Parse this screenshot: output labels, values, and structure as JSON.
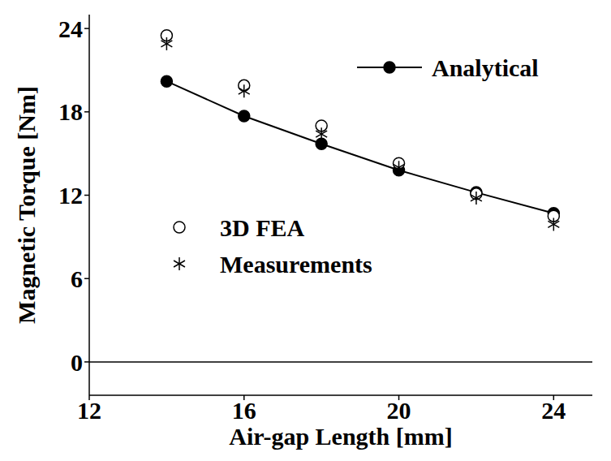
{
  "chart_data": {
    "type": "scatter",
    "x_label": "Air-gap Length [mm]",
    "y_label": "Magnetic Torque [Nm]",
    "x": [
      14,
      16,
      18,
      20,
      22,
      24
    ],
    "xlim": [
      12,
      25
    ],
    "xticks": [
      12,
      16,
      20,
      24
    ],
    "ylim": [
      -2.4,
      25
    ],
    "yticks": [
      0,
      6,
      12,
      18,
      24
    ],
    "grid": false,
    "series": [
      {
        "name": "Analytical",
        "type": "line",
        "marker": "filled_circle",
        "line_style": "solid",
        "color": "#000000",
        "values": [
          20.2,
          17.7,
          15.7,
          13.8,
          12.2,
          10.7
        ]
      },
      {
        "name": "3D FEA",
        "type": "scatter",
        "marker": "open_circle",
        "color": "#000000",
        "values": [
          23.5,
          19.9,
          17.0,
          14.3,
          12.1,
          10.5
        ]
      },
      {
        "name": "Measurements",
        "type": "scatter",
        "marker": "asterisk",
        "color": "#000000",
        "values": [
          22.9,
          19.5,
          16.4,
          14.0,
          11.8,
          9.9
        ]
      }
    ]
  }
}
